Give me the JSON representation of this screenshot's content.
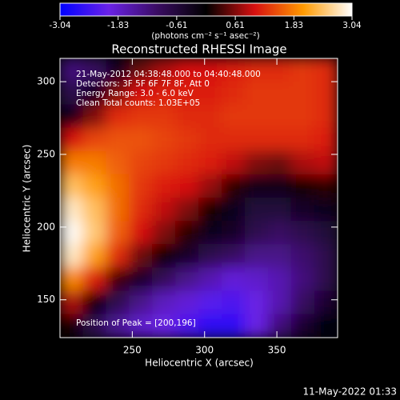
{
  "chart_data": {
    "type": "heatmap",
    "title": "Reconstructed RHESSI Image",
    "annotations": [
      "21-May-2012 04:38:48.000 to 04:40:48.000",
      "Detectors: 3F 5F 6F 7F 8F, Att 0",
      "Energy Range: 3.0 - 6.0 keV",
      "Clean     Total counts: 1.03E+05",
      "Position of Peak = [200,196]"
    ],
    "xlabel": "Heliocentric X (arcsec)",
    "ylabel": "Heliocentric Y (arcsec)",
    "xlim": [
      200,
      392
    ],
    "xticks": [
      250,
      300,
      350
    ],
    "ylim": [
      124,
      316
    ],
    "yticks": [
      150,
      200,
      250,
      300
    ],
    "colorbar_label": "(photons cm⁻² s⁻¹ asec⁻²)",
    "zlim": [
      -3.04,
      3.04
    ],
    "zticks": [
      -3.04,
      -1.83,
      -0.61,
      0.61,
      1.83,
      3.04
    ],
    "colorscale": [
      "#0000ff",
      "#6a22e8",
      "#3a0c62",
      "#000000",
      "#d81010",
      "#ff9a00",
      "#ffffff"
    ],
    "z": [
      [
        -1.2,
        -1.0,
        -0.3,
        0.5,
        0.8,
        1.0,
        1.0,
        1.1,
        1.2,
        1.2,
        1.3,
        1.2
      ],
      [
        -0.8,
        -0.3,
        0.6,
        1.0,
        1.1,
        1.1,
        1.1,
        1.2,
        1.3,
        1.3,
        1.3,
        1.2
      ],
      [
        -0.2,
        0.6,
        1.2,
        1.3,
        1.3,
        1.2,
        1.2,
        1.3,
        1.3,
        1.3,
        1.3,
        1.2
      ],
      [
        1.0,
        1.4,
        1.5,
        1.5,
        1.4,
        1.3,
        1.2,
        1.2,
        1.2,
        1.2,
        1.2,
        1.1
      ],
      [
        1.8,
        1.8,
        1.6,
        1.4,
        1.3,
        1.2,
        1.1,
        0.9,
        0.6,
        0.5,
        0.8,
        0.9
      ],
      [
        2.4,
        2.1,
        1.7,
        1.3,
        1.1,
        1.0,
        0.7,
        0.2,
        -0.2,
        -0.2,
        0.1,
        0.2
      ],
      [
        2.8,
        2.4,
        1.7,
        1.2,
        0.9,
        0.6,
        0.1,
        -0.3,
        -0.6,
        -0.6,
        -0.4,
        -0.3
      ],
      [
        3.0,
        2.5,
        1.6,
        1.0,
        0.6,
        0.2,
        -0.3,
        -0.4,
        -0.8,
        -1.0,
        -0.8,
        -0.6
      ],
      [
        2.8,
        2.1,
        1.2,
        0.5,
        0.0,
        -0.4,
        -0.8,
        -1.0,
        -1.3,
        -1.3,
        -1.1,
        -0.8
      ],
      [
        1.9,
        1.1,
        0.3,
        -0.4,
        -0.9,
        -1.3,
        -1.6,
        -1.9,
        -1.8,
        -1.6,
        -1.2,
        -0.8
      ],
      [
        0.8,
        0.0,
        -0.8,
        -1.3,
        -1.7,
        -1.9,
        -2.2,
        -2.3,
        -2.0,
        -1.6,
        -1.0,
        -0.5
      ],
      [
        0.1,
        -0.8,
        -1.4,
        -1.8,
        -2.0,
        -2.3,
        -2.6,
        -2.6,
        -2.0,
        -1.2,
        -0.5,
        -0.1
      ]
    ],
    "footer": "11-May-2022 01:33"
  }
}
